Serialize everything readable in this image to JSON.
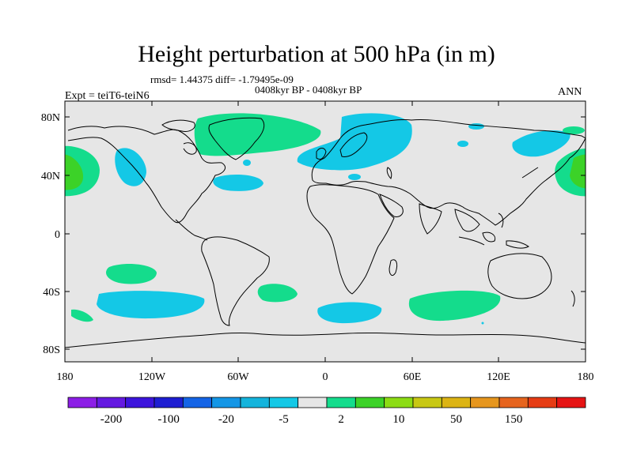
{
  "title": "Height perturbation at 500 hPa (in m)",
  "stats_text": "rmsd= 1.44375 diff= -1.79495e-09",
  "period": "0408kyr BP - 0408kyr BP",
  "experiment": "Expt = teiT6-teiN6",
  "season": "ANN",
  "lat_ticks": [
    "80N",
    "40N",
    "0",
    "40S",
    "80S"
  ],
  "lon_ticks": [
    "180",
    "120W",
    "60W",
    "0",
    "60E",
    "120E",
    "180"
  ],
  "colorbar": {
    "colors": [
      "#8c1ee6",
      "#6419e1",
      "#3c14dc",
      "#1e1ed2",
      "#1464e6",
      "#1496e6",
      "#14b4dc",
      "#14c8e6",
      "#e6e6e6",
      "#14dc8c",
      "#3cd228",
      "#8cdc14",
      "#c8c814",
      "#dcb414",
      "#e6961e",
      "#e6641e",
      "#e63c14",
      "#e61414"
    ],
    "labels": [
      "-200",
      "-100",
      "-20",
      "-5",
      "2",
      "10",
      "50",
      "150"
    ]
  },
  "colors": {
    "background": "#e6e6e6",
    "coast": "#000000",
    "positive": "#3cd228",
    "positive_light": "#14dc8c",
    "negative": "#14c8e6"
  }
}
